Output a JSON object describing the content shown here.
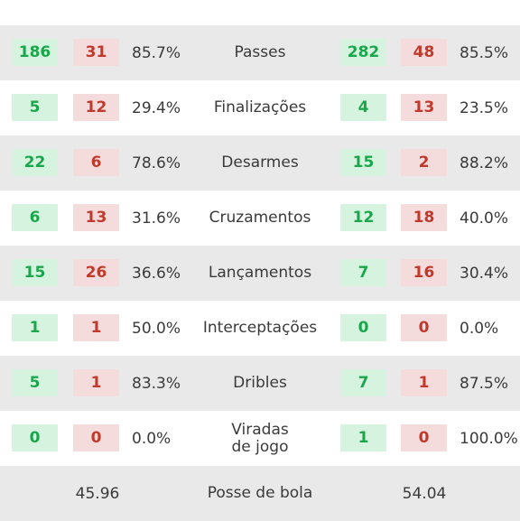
{
  "stats": [
    {
      "label": "Passes",
      "home": {
        "ok": "186",
        "err": "31",
        "pct": "85.7%"
      },
      "away": {
        "ok": "282",
        "err": "48",
        "pct": "85.5%"
      }
    },
    {
      "label": "Finalizações",
      "home": {
        "ok": "5",
        "err": "12",
        "pct": "29.4%"
      },
      "away": {
        "ok": "4",
        "err": "13",
        "pct": "23.5%"
      }
    },
    {
      "label": "Desarmes",
      "home": {
        "ok": "22",
        "err": "6",
        "pct": "78.6%"
      },
      "away": {
        "ok": "15",
        "err": "2",
        "pct": "88.2%"
      }
    },
    {
      "label": "Cruzamentos",
      "home": {
        "ok": "6",
        "err": "13",
        "pct": "31.6%"
      },
      "away": {
        "ok": "12",
        "err": "18",
        "pct": "40.0%"
      }
    },
    {
      "label": "Lançamentos",
      "home": {
        "ok": "15",
        "err": "26",
        "pct": "36.6%"
      },
      "away": {
        "ok": "7",
        "err": "16",
        "pct": "30.4%"
      }
    },
    {
      "label": "Interceptações",
      "home": {
        "ok": "1",
        "err": "1",
        "pct": "50.0%"
      },
      "away": {
        "ok": "0",
        "err": "0",
        "pct": "0.0%"
      }
    },
    {
      "label": "Dribles",
      "home": {
        "ok": "5",
        "err": "1",
        "pct": "83.3%"
      },
      "away": {
        "ok": "7",
        "err": "1",
        "pct": "87.5%"
      }
    },
    {
      "label": "Viradas de jogo",
      "home": {
        "ok": "0",
        "err": "0",
        "pct": "0.0%"
      },
      "away": {
        "ok": "1",
        "err": "0",
        "pct": "100.0%"
      }
    }
  ],
  "possession": {
    "label": "Posse de bola",
    "home": "45.96",
    "away": "54.04"
  },
  "colors": {
    "success_bg": "#d6f3df",
    "success_text": "#1aa64a",
    "error_bg": "#f5dcdc",
    "error_text": "#c0392b",
    "row_alt": "#e9e9e9"
  }
}
